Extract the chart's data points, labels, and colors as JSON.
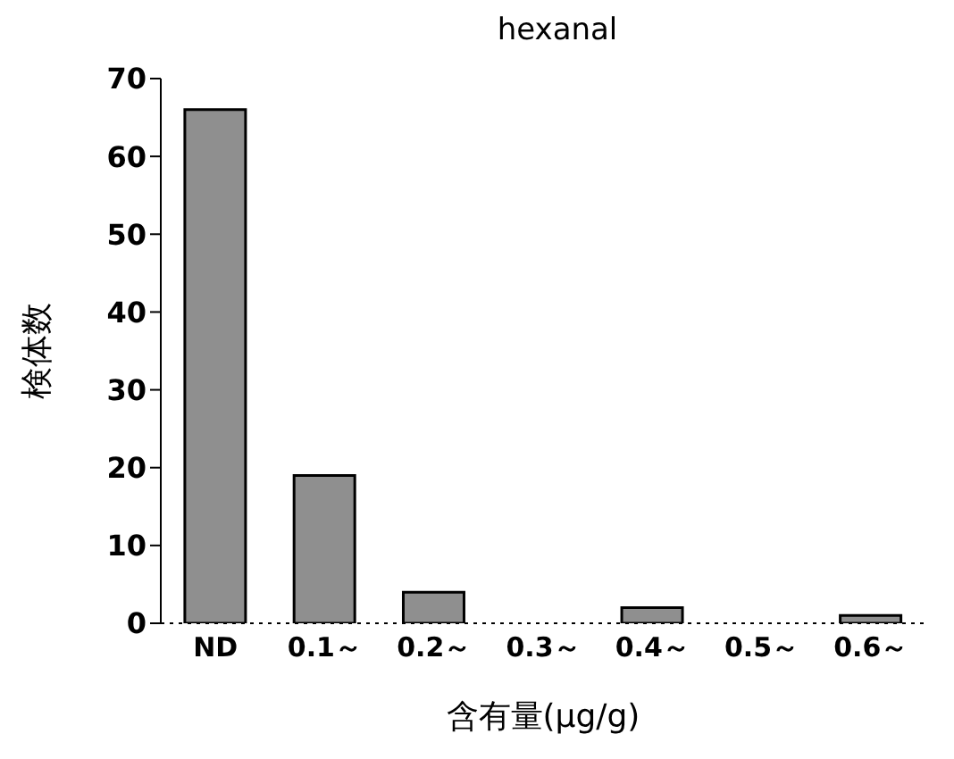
{
  "chart_data": {
    "type": "bar",
    "title": "hexanal",
    "xlabel": "含有量(μg/g)",
    "ylabel": "検体数",
    "categories": [
      "ND",
      "0.1～",
      "0.2～",
      "0.3～",
      "0.4～",
      "0.5～",
      "0.6～"
    ],
    "values": [
      66,
      19,
      4,
      0,
      2,
      0,
      1
    ],
    "color": "#8f8f8f",
    "ylim": [
      0,
      70
    ],
    "yticks": [
      0,
      10,
      20,
      30,
      40,
      50,
      60,
      70
    ]
  }
}
